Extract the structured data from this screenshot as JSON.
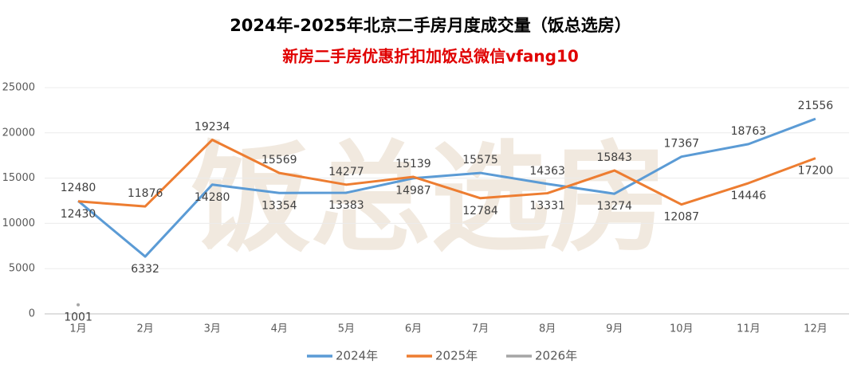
{
  "chart_data": {
    "type": "line",
    "title": "2024年-2025年北京二手房月度成交量（饭总选房）",
    "subtitle": "新房二手房优惠折扣加饭总微信vfang10",
    "watermark": "饭总选房",
    "categories": [
      "1月",
      "2月",
      "3月",
      "4月",
      "5月",
      "6月",
      "7月",
      "8月",
      "9月",
      "10月",
      "11月",
      "12月"
    ],
    "series": [
      {
        "name": "2024年",
        "color": "#5b9bd5",
        "values": [
          12480,
          6332,
          14280,
          13354,
          13383,
          14987,
          15575,
          14363,
          13274,
          17367,
          18763,
          21556
        ]
      },
      {
        "name": "2025年",
        "color": "#ed7d31",
        "values": [
          12430,
          11876,
          19234,
          15569,
          14277,
          15139,
          12784,
          13331,
          15843,
          12087,
          14446,
          17200
        ]
      },
      {
        "name": "2026年",
        "color": "#a5a5a5",
        "values": [
          1001,
          null,
          null,
          null,
          null,
          null,
          null,
          null,
          null,
          null,
          null,
          null
        ]
      }
    ],
    "ylim": [
      0,
      25000
    ],
    "yticks": [
      0,
      5000,
      10000,
      15000,
      20000,
      25000
    ],
    "legend": "bottom"
  }
}
